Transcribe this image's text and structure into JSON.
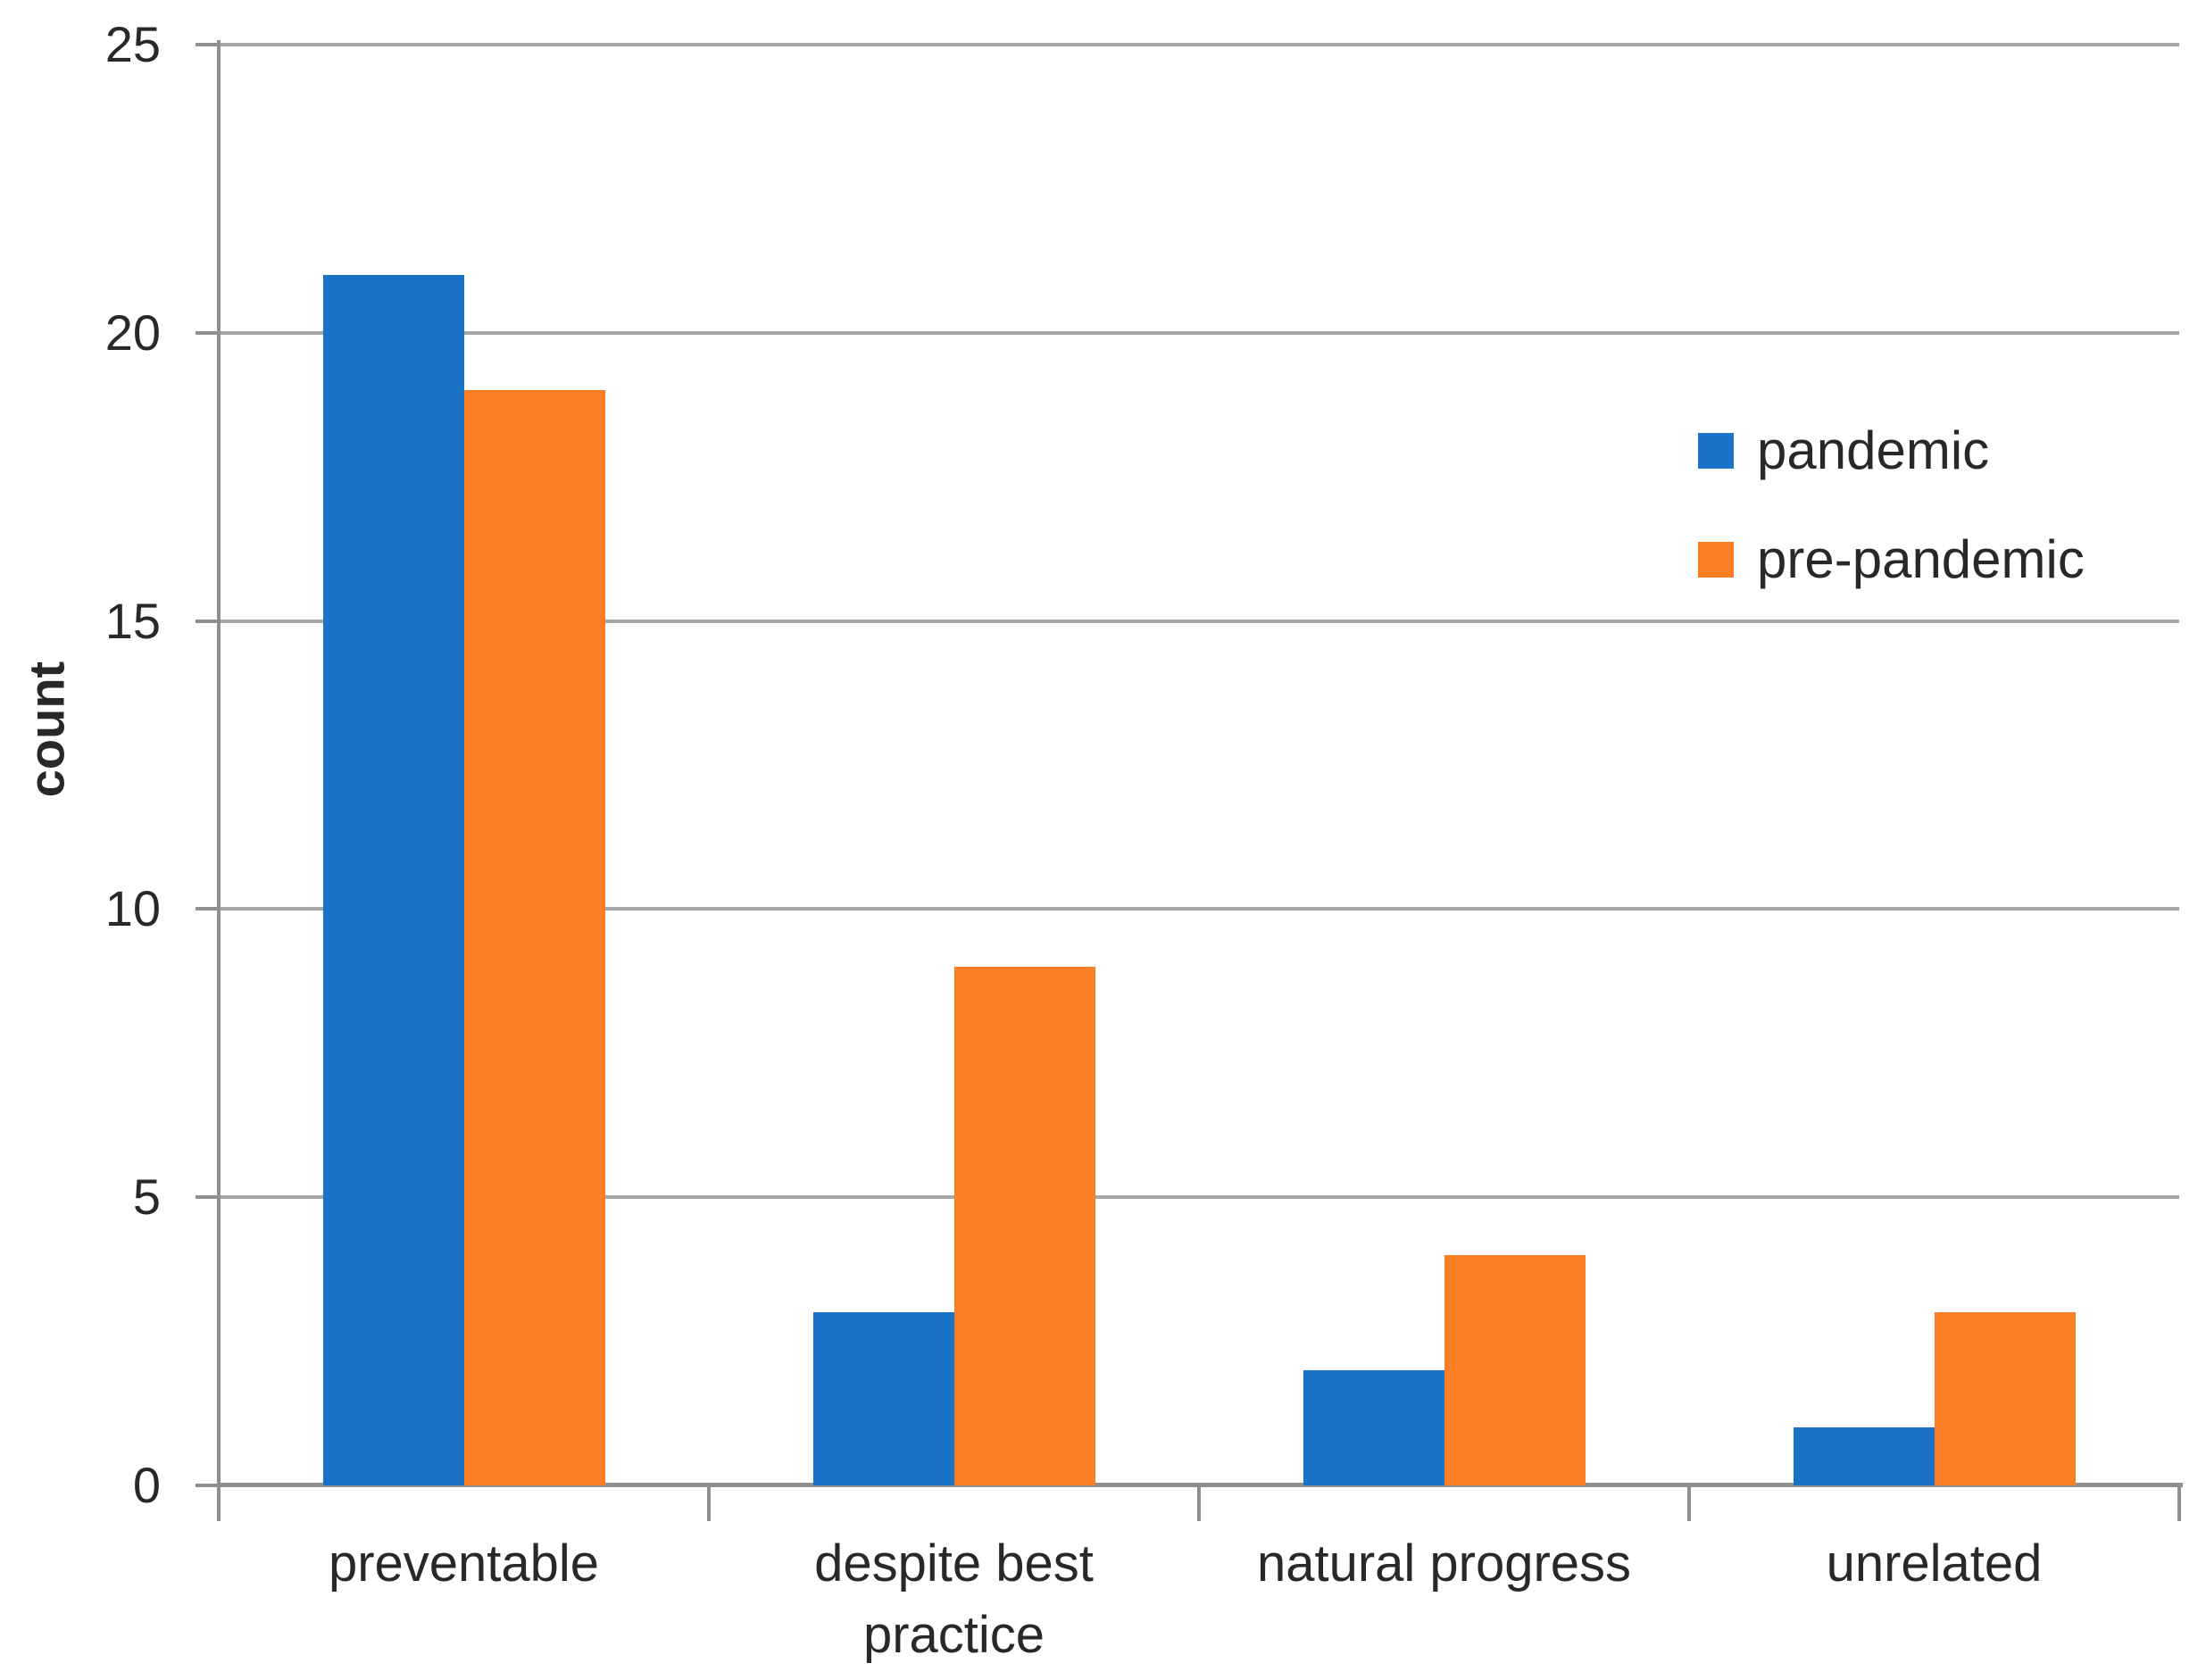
{
  "chart_data": {
    "type": "bar",
    "title": "",
    "categories": [
      "preventable",
      "despite best practice",
      "natural progress",
      "unrelated"
    ],
    "series": [
      {
        "name": "pandemic",
        "color": "#1B73C8",
        "values": [
          21,
          3,
          2,
          1
        ]
      },
      {
        "name": "pre-pandemic",
        "color": "#FB7D26",
        "values": [
          19,
          9,
          4,
          3
        ]
      }
    ],
    "xlabel": "",
    "ylabel": "count",
    "ylim": [
      0,
      25
    ],
    "yticks": [
      0,
      5,
      10,
      15,
      20,
      25
    ],
    "grid": true,
    "legend_position": "upper-right",
    "colors": {
      "grid": "#A7A7A7",
      "axis": "#8F8F8F",
      "text": "#282828",
      "background": "#FFFFFF"
    }
  }
}
